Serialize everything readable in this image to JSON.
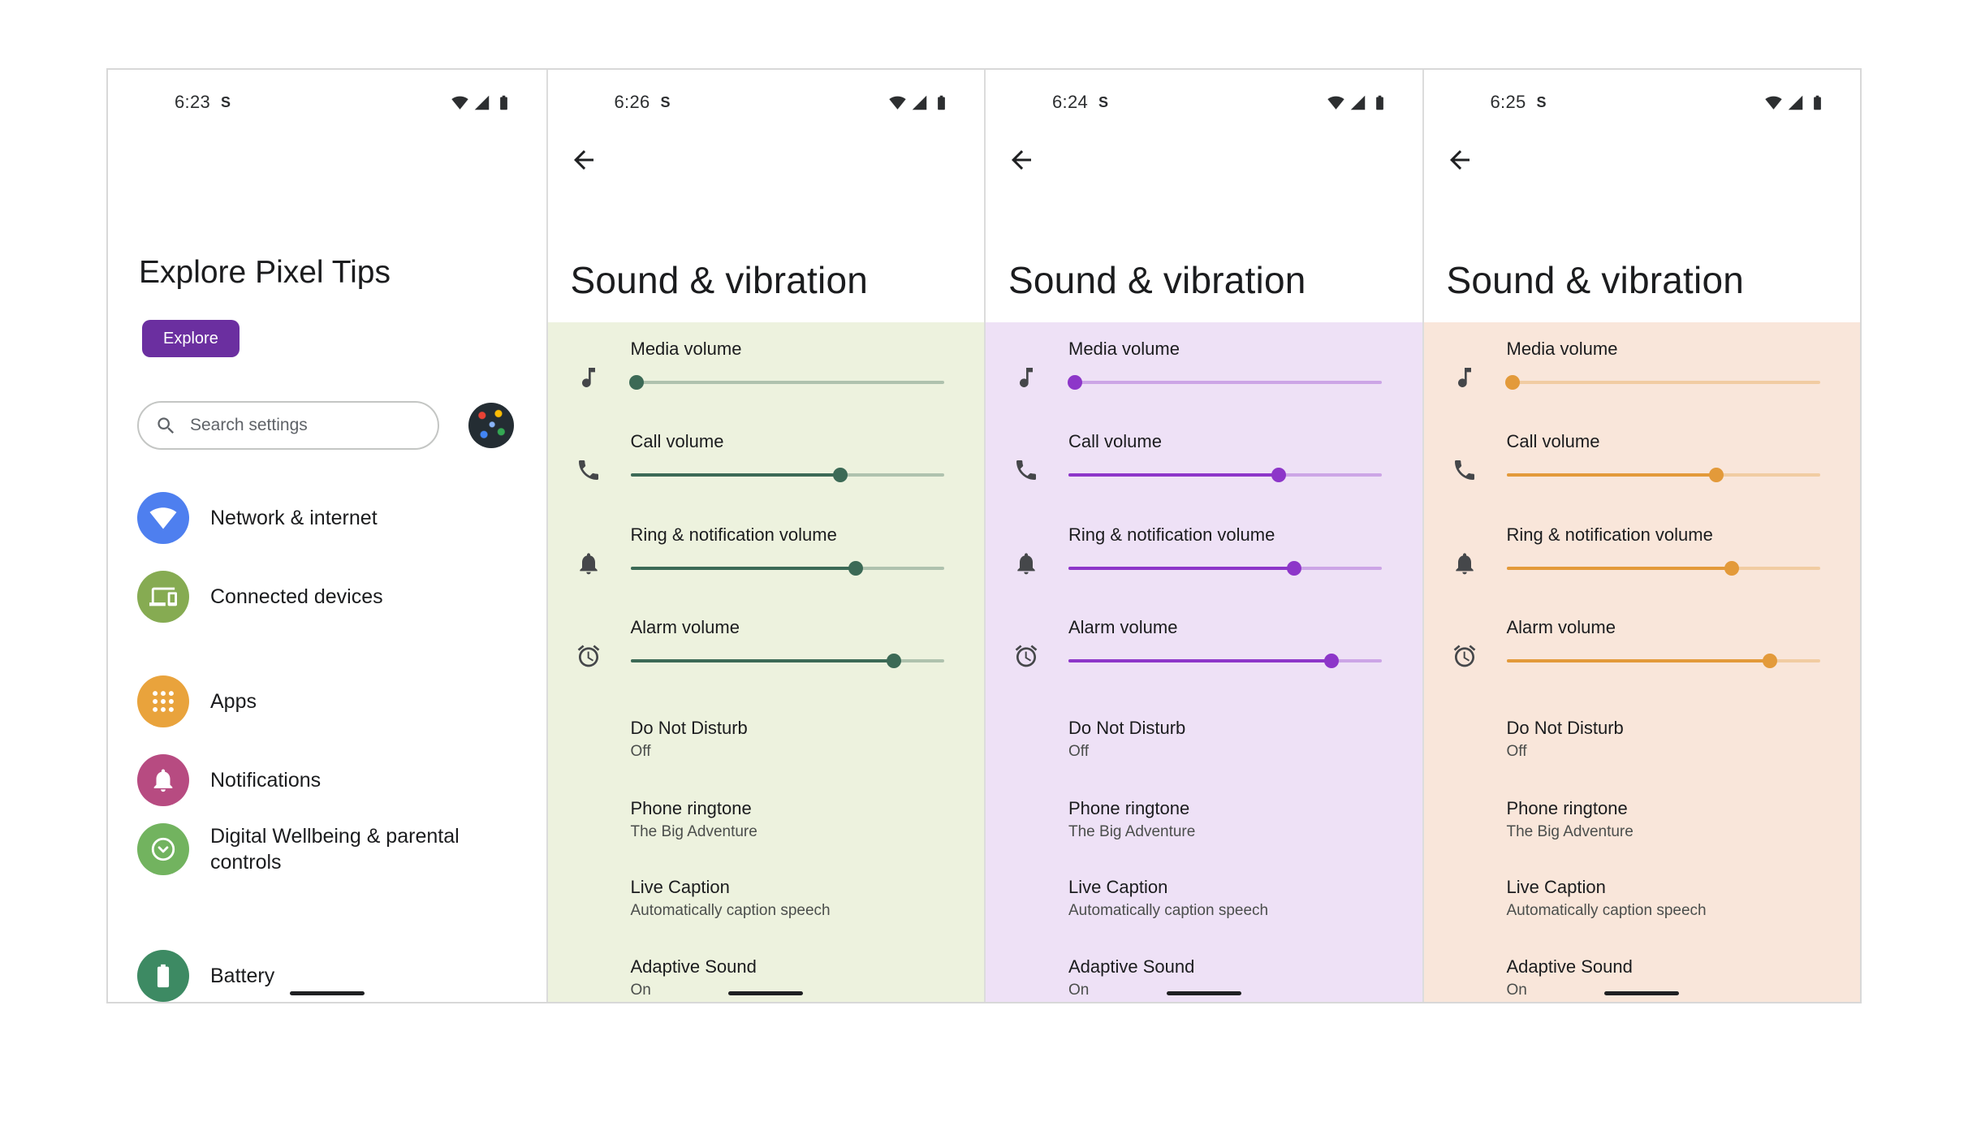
{
  "frame": {
    "border_color": "#d8d8d8",
    "background": "#ffffff"
  },
  "status_bar": {
    "icons": [
      "wifi",
      "cellular-signal",
      "battery"
    ]
  },
  "home": {
    "time": "6:23",
    "status_badge": "S",
    "heading": "Explore Pixel Tips",
    "explore_button": "Explore",
    "explore_button_color": "#6b2fa0",
    "search_placeholder": "Search settings",
    "items": [
      {
        "label": "Network & internet",
        "icon": "wifi-icon",
        "color": "#4e7fef"
      },
      {
        "label": "Connected devices",
        "icon": "devices-icon",
        "color": "#86ab52"
      },
      {
        "label": "Apps",
        "icon": "apps-grid-icon",
        "color": "#e9a33c"
      },
      {
        "label": "Notifications",
        "icon": "bell-icon",
        "color": "#b74b81"
      },
      {
        "label": "Digital Wellbeing & parental controls",
        "icon": "wellbeing-icon",
        "color": "#72b35f"
      },
      {
        "label": "Battery",
        "icon": "battery-icon",
        "color": "#3d8a63"
      }
    ]
  },
  "sound": {
    "title": "Sound & vibration",
    "back_icon": "arrow-left",
    "volume_rows": [
      {
        "label": "Media volume",
        "icon": "music-note-icon"
      },
      {
        "label": "Call volume",
        "icon": "phone-icon"
      },
      {
        "label": "Ring & notification volume",
        "icon": "bell-icon"
      },
      {
        "label": "Alarm volume",
        "icon": "alarm-clock-icon"
      }
    ],
    "settings": [
      {
        "label": "Do Not Disturb",
        "value": "Off"
      },
      {
        "label": "Phone ringtone",
        "value": "The Big Adventure"
      },
      {
        "label": "Live Caption",
        "value": "Automatically caption speech"
      },
      {
        "label": "Adaptive Sound",
        "value": "On"
      }
    ]
  },
  "screens": [
    {
      "time": "6:26",
      "status_badge": "S",
      "theme": "green",
      "accent": "#3c6a56",
      "tint": "#edf2de",
      "volumes": [
        2,
        67,
        72,
        84
      ]
    },
    {
      "time": "6:24",
      "status_badge": "S",
      "theme": "purple",
      "accent": "#8d36c9",
      "tint": "#eee1f6",
      "volumes": [
        2,
        67,
        72,
        84
      ]
    },
    {
      "time": "6:25",
      "status_badge": "S",
      "theme": "orange",
      "accent": "#e39a3a",
      "tint": "#f9e6da",
      "volumes": [
        2,
        67,
        72,
        84
      ]
    }
  ]
}
